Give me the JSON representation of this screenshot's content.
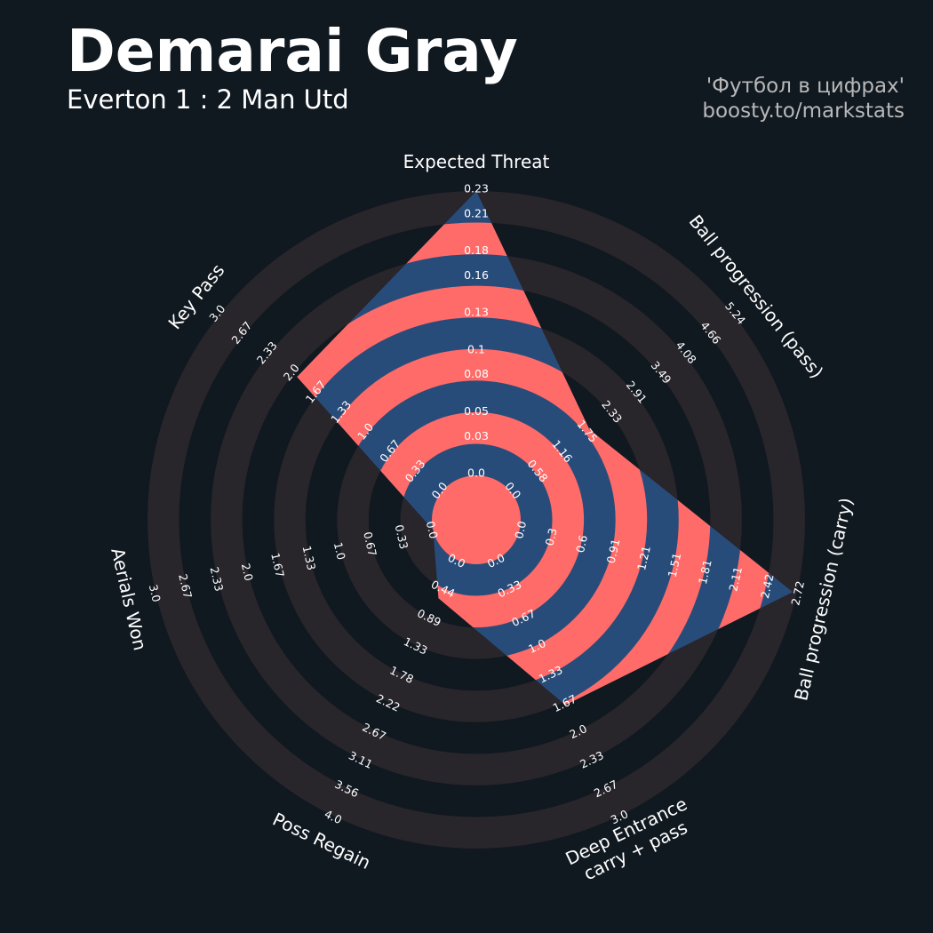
{
  "title": "Demarai Gray",
  "subtitle": "Everton 1 : 2 Man Utd",
  "credits": [
    "'Футбол в цифрах'",
    "boosty.to/markstats"
  ],
  "chart_data": {
    "type": "radar",
    "categories": [
      "Expected Threat",
      "Ball progression (pass)",
      "Ball progression (carry)",
      "Deep Entrance\ncarry + pass",
      "Poss Regain",
      "Aerials Won",
      "Key Pass"
    ],
    "values": [
      0.23,
      1.85,
      2.68,
      1.7,
      0.6,
      0,
      1.95
    ],
    "color": "#284c7a",
    "ring_color": "#ff6b68",
    "background_ring_color": "#28252b",
    "rlims": [
      [
        0,
        0.23
      ],
      [
        0,
        5.24
      ],
      [
        0,
        2.72
      ],
      [
        0,
        3
      ],
      [
        0,
        4
      ],
      [
        0,
        3
      ],
      [
        0,
        3
      ]
    ],
    "rticks": [
      [
        {
          "value": 0,
          "label": "0.0"
        },
        0.03,
        0.05,
        0.08,
        0.1,
        0.13,
        0.16,
        0.18,
        0.21,
        0.23
      ],
      [
        {
          "value": 0,
          "label": "0.0"
        },
        0.58,
        1.16,
        1.75,
        2.33,
        2.91,
        3.49,
        4.08,
        4.66,
        5.24
      ],
      [
        {
          "value": 0,
          "label": "0.0"
        },
        0.3,
        0.6,
        0.91,
        1.21,
        1.51,
        1.81,
        2.11,
        2.42,
        2.72
      ],
      [
        {
          "value": 0,
          "label": "0.0"
        },
        0.33,
        0.67,
        {
          "value": 1,
          "label": "1.0"
        },
        1.33,
        1.67,
        {
          "value": 2,
          "label": "2.0"
        },
        2.33,
        2.67,
        {
          "value": 3,
          "label": "3.0"
        }
      ],
      [
        {
          "value": 0,
          "label": "0.0"
        },
        0.44,
        0.89,
        1.33,
        1.78,
        2.22,
        2.67,
        3.11,
        3.56,
        {
          "value": 4,
          "label": "4.0"
        }
      ],
      [
        {
          "value": 0,
          "label": "0.0"
        },
        0.33,
        0.67,
        {
          "value": 1,
          "label": "1.0"
        },
        1.33,
        1.67,
        {
          "value": 2,
          "label": "2.0"
        },
        2.33,
        2.67,
        {
          "value": 3,
          "label": "3.0"
        }
      ],
      [
        {
          "value": 0,
          "label": "0.0"
        },
        0.33,
        0.67,
        {
          "value": 1,
          "label": "1.0"
        },
        1.33,
        1.67,
        {
          "value": 2,
          "label": "2.0"
        },
        2.33,
        2.67,
        {
          "value": 3,
          "label": "3.0"
        }
      ]
    ]
  }
}
